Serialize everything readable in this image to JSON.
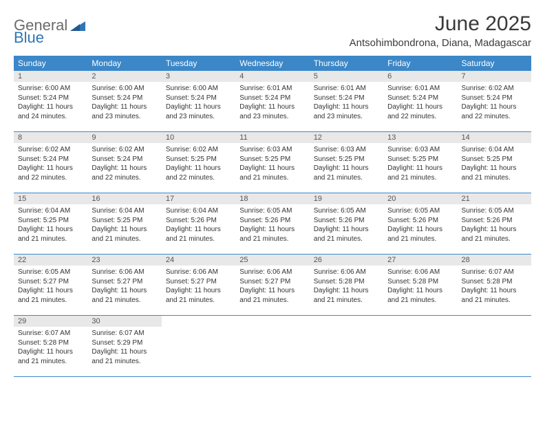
{
  "brand": {
    "word1": "General",
    "word2": "Blue"
  },
  "title": "June 2025",
  "location": "Antsohimbondrona, Diana, Madagascar",
  "colors": {
    "header_bg": "#3b87c8",
    "header_text": "#ffffff",
    "daynum_bg": "#e8e8e8",
    "daynum_text": "#555555",
    "body_text": "#333333",
    "border": "#3b87c8",
    "logo_gray": "#6b6b6b",
    "logo_blue": "#2f75b5"
  },
  "typography": {
    "title_fontsize": 30,
    "location_fontsize": 15,
    "dow_fontsize": 12,
    "daynum_fontsize": 11,
    "body_fontsize": 10
  },
  "dow": [
    "Sunday",
    "Monday",
    "Tuesday",
    "Wednesday",
    "Thursday",
    "Friday",
    "Saturday"
  ],
  "weeks": [
    [
      {
        "n": "1",
        "sr": "Sunrise: 6:00 AM",
        "ss": "Sunset: 5:24 PM",
        "d1": "Daylight: 11 hours",
        "d2": "and 24 minutes."
      },
      {
        "n": "2",
        "sr": "Sunrise: 6:00 AM",
        "ss": "Sunset: 5:24 PM",
        "d1": "Daylight: 11 hours",
        "d2": "and 23 minutes."
      },
      {
        "n": "3",
        "sr": "Sunrise: 6:00 AM",
        "ss": "Sunset: 5:24 PM",
        "d1": "Daylight: 11 hours",
        "d2": "and 23 minutes."
      },
      {
        "n": "4",
        "sr": "Sunrise: 6:01 AM",
        "ss": "Sunset: 5:24 PM",
        "d1": "Daylight: 11 hours",
        "d2": "and 23 minutes."
      },
      {
        "n": "5",
        "sr": "Sunrise: 6:01 AM",
        "ss": "Sunset: 5:24 PM",
        "d1": "Daylight: 11 hours",
        "d2": "and 23 minutes."
      },
      {
        "n": "6",
        "sr": "Sunrise: 6:01 AM",
        "ss": "Sunset: 5:24 PM",
        "d1": "Daylight: 11 hours",
        "d2": "and 22 minutes."
      },
      {
        "n": "7",
        "sr": "Sunrise: 6:02 AM",
        "ss": "Sunset: 5:24 PM",
        "d1": "Daylight: 11 hours",
        "d2": "and 22 minutes."
      }
    ],
    [
      {
        "n": "8",
        "sr": "Sunrise: 6:02 AM",
        "ss": "Sunset: 5:24 PM",
        "d1": "Daylight: 11 hours",
        "d2": "and 22 minutes."
      },
      {
        "n": "9",
        "sr": "Sunrise: 6:02 AM",
        "ss": "Sunset: 5:24 PM",
        "d1": "Daylight: 11 hours",
        "d2": "and 22 minutes."
      },
      {
        "n": "10",
        "sr": "Sunrise: 6:02 AM",
        "ss": "Sunset: 5:25 PM",
        "d1": "Daylight: 11 hours",
        "d2": "and 22 minutes."
      },
      {
        "n": "11",
        "sr": "Sunrise: 6:03 AM",
        "ss": "Sunset: 5:25 PM",
        "d1": "Daylight: 11 hours",
        "d2": "and 21 minutes."
      },
      {
        "n": "12",
        "sr": "Sunrise: 6:03 AM",
        "ss": "Sunset: 5:25 PM",
        "d1": "Daylight: 11 hours",
        "d2": "and 21 minutes."
      },
      {
        "n": "13",
        "sr": "Sunrise: 6:03 AM",
        "ss": "Sunset: 5:25 PM",
        "d1": "Daylight: 11 hours",
        "d2": "and 21 minutes."
      },
      {
        "n": "14",
        "sr": "Sunrise: 6:04 AM",
        "ss": "Sunset: 5:25 PM",
        "d1": "Daylight: 11 hours",
        "d2": "and 21 minutes."
      }
    ],
    [
      {
        "n": "15",
        "sr": "Sunrise: 6:04 AM",
        "ss": "Sunset: 5:25 PM",
        "d1": "Daylight: 11 hours",
        "d2": "and 21 minutes."
      },
      {
        "n": "16",
        "sr": "Sunrise: 6:04 AM",
        "ss": "Sunset: 5:25 PM",
        "d1": "Daylight: 11 hours",
        "d2": "and 21 minutes."
      },
      {
        "n": "17",
        "sr": "Sunrise: 6:04 AM",
        "ss": "Sunset: 5:26 PM",
        "d1": "Daylight: 11 hours",
        "d2": "and 21 minutes."
      },
      {
        "n": "18",
        "sr": "Sunrise: 6:05 AM",
        "ss": "Sunset: 5:26 PM",
        "d1": "Daylight: 11 hours",
        "d2": "and 21 minutes."
      },
      {
        "n": "19",
        "sr": "Sunrise: 6:05 AM",
        "ss": "Sunset: 5:26 PM",
        "d1": "Daylight: 11 hours",
        "d2": "and 21 minutes."
      },
      {
        "n": "20",
        "sr": "Sunrise: 6:05 AM",
        "ss": "Sunset: 5:26 PM",
        "d1": "Daylight: 11 hours",
        "d2": "and 21 minutes."
      },
      {
        "n": "21",
        "sr": "Sunrise: 6:05 AM",
        "ss": "Sunset: 5:26 PM",
        "d1": "Daylight: 11 hours",
        "d2": "and 21 minutes."
      }
    ],
    [
      {
        "n": "22",
        "sr": "Sunrise: 6:05 AM",
        "ss": "Sunset: 5:27 PM",
        "d1": "Daylight: 11 hours",
        "d2": "and 21 minutes."
      },
      {
        "n": "23",
        "sr": "Sunrise: 6:06 AM",
        "ss": "Sunset: 5:27 PM",
        "d1": "Daylight: 11 hours",
        "d2": "and 21 minutes."
      },
      {
        "n": "24",
        "sr": "Sunrise: 6:06 AM",
        "ss": "Sunset: 5:27 PM",
        "d1": "Daylight: 11 hours",
        "d2": "and 21 minutes."
      },
      {
        "n": "25",
        "sr": "Sunrise: 6:06 AM",
        "ss": "Sunset: 5:27 PM",
        "d1": "Daylight: 11 hours",
        "d2": "and 21 minutes."
      },
      {
        "n": "26",
        "sr": "Sunrise: 6:06 AM",
        "ss": "Sunset: 5:28 PM",
        "d1": "Daylight: 11 hours",
        "d2": "and 21 minutes."
      },
      {
        "n": "27",
        "sr": "Sunrise: 6:06 AM",
        "ss": "Sunset: 5:28 PM",
        "d1": "Daylight: 11 hours",
        "d2": "and 21 minutes."
      },
      {
        "n": "28",
        "sr": "Sunrise: 6:07 AM",
        "ss": "Sunset: 5:28 PM",
        "d1": "Daylight: 11 hours",
        "d2": "and 21 minutes."
      }
    ],
    [
      {
        "n": "29",
        "sr": "Sunrise: 6:07 AM",
        "ss": "Sunset: 5:28 PM",
        "d1": "Daylight: 11 hours",
        "d2": "and 21 minutes."
      },
      {
        "n": "30",
        "sr": "Sunrise: 6:07 AM",
        "ss": "Sunset: 5:29 PM",
        "d1": "Daylight: 11 hours",
        "d2": "and 21 minutes."
      },
      {
        "empty": true
      },
      {
        "empty": true
      },
      {
        "empty": true
      },
      {
        "empty": true
      },
      {
        "empty": true
      }
    ]
  ]
}
